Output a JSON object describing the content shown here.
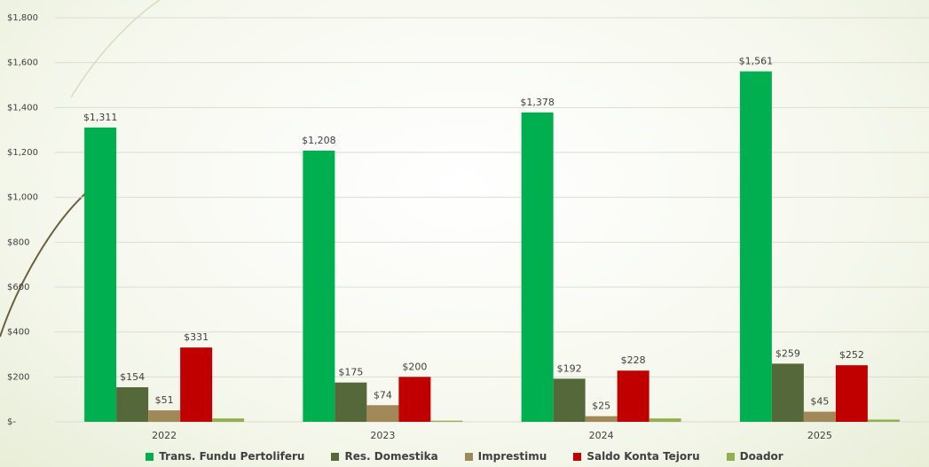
{
  "chart_data": {
    "type": "bar",
    "categories": [
      "2022",
      "2023",
      "2024",
      "2025"
    ],
    "series": [
      {
        "name": "Trans. Fundu Pertoliferu",
        "color": "#00b050",
        "values": [
          1311,
          1208,
          1378,
          1561
        ],
        "value_labels": [
          "$1,311",
          "$1,208",
          "$1,378",
          "$1,561"
        ]
      },
      {
        "name": "Res. Domestika",
        "color": "#55683a",
        "values": [
          154,
          175,
          192,
          259
        ],
        "value_labels": [
          "$154",
          "$175",
          "$192",
          "$259"
        ]
      },
      {
        "name": "Imprestimu",
        "color": "#a08858",
        "values": [
          51,
          74,
          25,
          45
        ],
        "value_labels": [
          "$51",
          "$74",
          "$25",
          "$45"
        ]
      },
      {
        "name": "Saldo Konta Tejoru",
        "color": "#c00000",
        "values": [
          331,
          200,
          228,
          252
        ],
        "value_labels": [
          "$331",
          "$200",
          "$228",
          "$252"
        ]
      },
      {
        "name": "Doador",
        "color": "#92b050",
        "values": [
          15,
          5,
          15,
          10
        ]
      }
    ],
    "ylim": [
      0,
      1800
    ],
    "yticks": [
      {
        "value": 0,
        "label": "$-"
      },
      {
        "value": 200,
        "label": "$200"
      },
      {
        "value": 400,
        "label": "$400"
      },
      {
        "value": 600,
        "label": "$600"
      },
      {
        "value": 800,
        "label": "$800"
      },
      {
        "value": 1000,
        "label": "$1,000"
      },
      {
        "value": 1200,
        "label": "$1,200"
      },
      {
        "value": 1400,
        "label": "$1,400"
      },
      {
        "value": 1600,
        "label": "$1,600"
      },
      {
        "value": 1800,
        "label": "$1,800"
      }
    ],
    "grid": true,
    "legend": "bottom"
  }
}
